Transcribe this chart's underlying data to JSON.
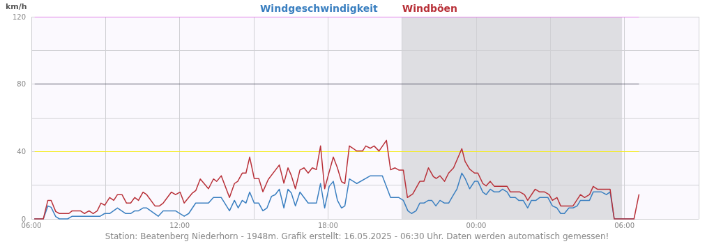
{
  "chart_data": {
    "type": "line",
    "ylabel": "km/h",
    "legend": "top",
    "annotations": [
      "Station: Beatenberg Niederhorn - 1948m. Grafik erstellt: 16.05.2025 - 06:30 Uhr. Daten werden automatisch gemessen!"
    ],
    "xlim": [
      "2025-05-15T06:00",
      "2025-05-16T09:00"
    ],
    "xticks": [
      {
        "value": "2025-05-15T06:00",
        "label": "06:00"
      },
      {
        "value": "2025-05-15T09:00",
        "label": null
      },
      {
        "value": "2025-05-15T12:00",
        "label": "12:00"
      },
      {
        "value": "2025-05-15T15:00",
        "label": null
      },
      {
        "value": "2025-05-15T18:00",
        "label": "18:00"
      },
      {
        "value": "2025-05-15T21:00",
        "label": null
      },
      {
        "value": "2025-05-16T00:00",
        "label": "00:00"
      },
      {
        "value": "2025-05-16T03:00",
        "label": null
      },
      {
        "value": "2025-05-16T06:00",
        "label": "06:00"
      },
      {
        "value": "2025-05-16T09:00",
        "label": null
      }
    ],
    "ylim": [
      0,
      120
    ],
    "yticks": [
      0,
      {
        "value": 20,
        "label": null
      },
      40,
      {
        "value": 60,
        "label": null
      },
      80,
      {
        "value": 100,
        "label": null
      },
      120
    ],
    "grid": true,
    "marker": "none",
    "line_style": "solid",
    "bands": [
      {
        "axis": "x",
        "from": "2025-05-15T21:00",
        "to": "2025-05-16T05:54",
        "color": "#dedee2"
      }
    ],
    "ref_lines": [
      {
        "axis": "y",
        "value": 120,
        "color": "#e080e8"
      },
      {
        "axis": "y",
        "value": 80,
        "color": "#555566"
      },
      {
        "axis": "y",
        "value": 40,
        "color": "#f4ec20"
      }
    ],
    "series": [
      {
        "name": "Windgeschwindigkeit",
        "color": "#3a7fc0",
        "x": [
          "2025-05-15T06:08",
          "2025-05-15T06:29",
          "2025-05-15T06:40",
          "2025-05-15T06:48",
          "2025-05-15T06:59",
          "2025-05-15T07:08",
          "2025-05-15T07:28",
          "2025-05-15T07:39",
          "2025-05-15T08:47",
          "2025-05-15T08:58",
          "2025-05-15T09:10",
          "2025-05-15T09:29",
          "2025-05-15T09:49",
          "2025-05-15T10:01",
          "2025-05-15T10:11",
          "2025-05-15T10:20",
          "2025-05-15T10:31",
          "2025-05-15T10:40",
          "2025-05-15T11:08",
          "2025-05-15T11:20",
          "2025-05-15T11:50",
          "2025-05-15T12:11",
          "2025-05-15T12:22",
          "2025-05-15T12:39",
          "2025-05-15T13:10",
          "2025-05-15T13:22",
          "2025-05-15T13:41",
          "2025-05-15T14:01",
          "2025-05-15T14:13",
          "2025-05-15T14:22",
          "2025-05-15T14:32",
          "2025-05-15T14:41",
          "2025-05-15T14:50",
          "2025-05-15T15:01",
          "2025-05-15T15:12",
          "2025-05-15T15:22",
          "2025-05-15T15:32",
          "2025-05-15T15:43",
          "2025-05-15T15:52",
          "2025-05-15T16:02",
          "2025-05-15T16:13",
          "2025-05-15T16:23",
          "2025-05-15T16:31",
          "2025-05-15T16:41",
          "2025-05-15T16:52",
          "2025-05-15T17:12",
          "2025-05-15T17:32",
          "2025-05-15T17:42",
          "2025-05-15T17:52",
          "2025-05-15T18:03",
          "2025-05-15T18:13",
          "2025-05-15T18:23",
          "2025-05-15T18:33",
          "2025-05-15T18:41",
          "2025-05-15T18:52",
          "2025-05-15T19:10",
          "2025-05-15T19:43",
          "2025-05-15T20:12",
          "2025-05-15T20:32",
          "2025-05-15T20:52",
          "2025-05-15T21:03",
          "2025-05-15T21:14",
          "2025-05-15T21:23",
          "2025-05-15T21:34",
          "2025-05-15T21:43",
          "2025-05-15T21:53",
          "2025-05-15T22:04",
          "2025-05-15T22:12",
          "2025-05-15T22:22",
          "2025-05-15T22:32",
          "2025-05-15T22:43",
          "2025-05-15T22:53",
          "2025-05-15T23:05",
          "2025-05-15T23:13",
          "2025-05-15T23:25",
          "2025-05-15T23:33",
          "2025-05-15T23:44",
          "2025-05-15T23:56",
          "2025-05-16T00:04",
          "2025-05-16T00:16",
          "2025-05-16T00:24",
          "2025-05-16T00:34",
          "2025-05-16T00:44",
          "2025-05-16T00:55",
          "2025-05-16T01:04",
          "2025-05-16T01:15",
          "2025-05-16T01:23",
          "2025-05-16T01:35",
          "2025-05-16T01:43",
          "2025-05-16T01:54",
          "2025-05-16T02:05",
          "2025-05-16T02:14",
          "2025-05-16T02:25",
          "2025-05-16T02:34",
          "2025-05-16T02:54",
          "2025-05-16T03:05",
          "2025-05-16T03:16",
          "2025-05-16T03:25",
          "2025-05-16T03:34",
          "2025-05-16T03:45",
          "2025-05-16T03:55",
          "2025-05-16T04:05",
          "2025-05-16T04:13",
          "2025-05-16T04:35",
          "2025-05-16T04:44",
          "2025-05-16T05:04",
          "2025-05-16T05:16",
          "2025-05-16T05:25",
          "2025-05-16T05:35",
          "2025-05-16T06:23"
        ],
        "values": [
          0,
          0,
          7.7,
          6.9,
          1.4,
          0,
          0,
          1.6,
          1.6,
          3.2,
          3.2,
          6.5,
          3.2,
          3.2,
          4.8,
          4.8,
          6.5,
          6.5,
          1.6,
          4.8,
          4.8,
          1.6,
          3.2,
          9.4,
          9.4,
          12.7,
          12.7,
          4.8,
          11,
          6.5,
          11,
          9.4,
          15.9,
          9.4,
          9.4,
          4.8,
          6.5,
          13.4,
          14.4,
          17.6,
          6.5,
          17.6,
          15.4,
          7.7,
          15.9,
          9.4,
          9.4,
          21,
          6.5,
          19.3,
          22.3,
          11,
          6.5,
          7.7,
          23.7,
          21,
          25.6,
          25.6,
          12.7,
          12.7,
          11,
          4.8,
          3.2,
          4.8,
          9.4,
          9.4,
          11,
          11,
          7.7,
          11,
          9.4,
          9.4,
          14.4,
          17.6,
          27.2,
          24,
          17.9,
          22.3,
          22.3,
          15.9,
          14.4,
          17.6,
          16,
          16,
          17.6,
          16,
          12.7,
          12.7,
          11,
          11,
          6.5,
          11,
          11,
          12.7,
          12.7,
          7.7,
          6.5,
          3.2,
          3.2,
          6.5,
          6.5,
          7.7,
          11,
          11,
          16,
          16,
          14.4,
          16,
          0,
          0
        ]
      },
      {
        "name": "Windböen",
        "color": "#b83038",
        "x": [
          "2025-05-15T06:08",
          "2025-05-15T06:29",
          "2025-05-15T06:40",
          "2025-05-15T06:48",
          "2025-05-15T06:59",
          "2025-05-15T07:08",
          "2025-05-15T07:31",
          "2025-05-15T07:39",
          "2025-05-15T07:59",
          "2025-05-15T08:09",
          "2025-05-15T08:20",
          "2025-05-15T08:30",
          "2025-05-15T08:40",
          "2025-05-15T08:49",
          "2025-05-15T08:58",
          "2025-05-15T09:10",
          "2025-05-15T09:20",
          "2025-05-15T09:29",
          "2025-05-15T09:40",
          "2025-05-15T09:51",
          "2025-05-15T10:01",
          "2025-05-15T10:11",
          "2025-05-15T10:20",
          "2025-05-15T10:31",
          "2025-05-15T10:40",
          "2025-05-15T11:00",
          "2025-05-15T11:11",
          "2025-05-15T11:20",
          "2025-05-15T11:40",
          "2025-05-15T11:50",
          "2025-05-15T12:01",
          "2025-05-15T12:11",
          "2025-05-15T12:31",
          "2025-05-15T12:39",
          "2025-05-15T12:50",
          "2025-05-15T13:10",
          "2025-05-15T13:22",
          "2025-05-15T13:30",
          "2025-05-15T13:41",
          "2025-05-15T14:01",
          "2025-05-15T14:13",
          "2025-05-15T14:21",
          "2025-05-15T14:32",
          "2025-05-15T14:41",
          "2025-05-15T14:50",
          "2025-05-15T15:01",
          "2025-05-15T15:12",
          "2025-05-15T15:22",
          "2025-05-15T15:35",
          "2025-05-15T16:02",
          "2025-05-15T16:13",
          "2025-05-15T16:23",
          "2025-05-15T16:31",
          "2025-05-15T16:41",
          "2025-05-15T16:52",
          "2025-05-15T17:02",
          "2025-05-15T17:12",
          "2025-05-15T17:22",
          "2025-05-15T17:32",
          "2025-05-15T17:42",
          "2025-05-15T17:52",
          "2025-05-15T18:03",
          "2025-05-15T18:13",
          "2025-05-15T18:23",
          "2025-05-15T18:33",
          "2025-05-15T18:41",
          "2025-05-15T18:52",
          "2025-05-15T19:10",
          "2025-05-15T19:24",
          "2025-05-15T19:32",
          "2025-05-15T19:43",
          "2025-05-15T19:52",
          "2025-05-15T20:04",
          "2025-05-15T20:22",
          "2025-05-15T20:32",
          "2025-05-15T20:43",
          "2025-05-15T20:52",
          "2025-05-15T21:03",
          "2025-05-15T21:13",
          "2025-05-15T21:26",
          "2025-05-15T21:43",
          "2025-05-15T21:53",
          "2025-05-15T22:04",
          "2025-05-15T22:16",
          "2025-05-15T22:23",
          "2025-05-15T22:32",
          "2025-05-15T22:43",
          "2025-05-15T22:53",
          "2025-05-15T23:05",
          "2025-05-15T23:25",
          "2025-05-15T23:33",
          "2025-05-15T23:44",
          "2025-05-15T23:56",
          "2025-05-16T00:04",
          "2025-05-16T00:16",
          "2025-05-16T00:24",
          "2025-05-16T00:34",
          "2025-05-16T00:44",
          "2025-05-16T01:15",
          "2025-05-16T01:23",
          "2025-05-16T01:46",
          "2025-05-16T01:57",
          "2025-05-16T02:05",
          "2025-05-16T02:23",
          "2025-05-16T02:34",
          "2025-05-16T02:46",
          "2025-05-16T02:57",
          "2025-05-16T03:05",
          "2025-05-16T03:16",
          "2025-05-16T03:25",
          "2025-05-16T03:55",
          "2025-05-16T04:13",
          "2025-05-16T04:23",
          "2025-05-16T04:35",
          "2025-05-16T04:44",
          "2025-05-16T04:54",
          "2025-05-16T05:25",
          "2025-05-16T05:35",
          "2025-05-16T06:23",
          "2025-05-16T06:35"
        ],
        "values": [
          0,
          0,
          11,
          11,
          4.4,
          3.2,
          3.2,
          4.8,
          4.8,
          3.2,
          4.8,
          3.2,
          4.8,
          9.4,
          8.1,
          12.7,
          11,
          14.4,
          14.4,
          9.4,
          9.4,
          12.7,
          11,
          15.9,
          14.4,
          7.7,
          7.7,
          9.4,
          15.9,
          14.4,
          15.9,
          9.4,
          15.4,
          16.8,
          23.7,
          17.9,
          23.7,
          22.3,
          25.6,
          12.7,
          21,
          22.3,
          27.2,
          27.2,
          36.7,
          24,
          24,
          16.1,
          23.4,
          32,
          21.2,
          30.3,
          25.8,
          17.9,
          29,
          30.3,
          27.2,
          30.3,
          29.3,
          43.3,
          17.9,
          27.9,
          36.7,
          30.3,
          22.1,
          21,
          43.3,
          40.3,
          40.3,
          43.3,
          41.9,
          43.3,
          40.3,
          46.6,
          29.2,
          30.3,
          29,
          29,
          12.7,
          14.8,
          22.3,
          22.3,
          30.3,
          25.1,
          24,
          25.6,
          22.3,
          27.2,
          30.3,
          41.7,
          34.1,
          29.5,
          27.2,
          27.2,
          21,
          19.6,
          22.3,
          19.3,
          19.3,
          16,
          16,
          14.4,
          11,
          17.6,
          16,
          16,
          14.4,
          11,
          12.7,
          7.7,
          7.7,
          14.4,
          12.7,
          14.4,
          19.3,
          17.6,
          17.6,
          0,
          0,
          14.4
        ]
      }
    ]
  }
}
